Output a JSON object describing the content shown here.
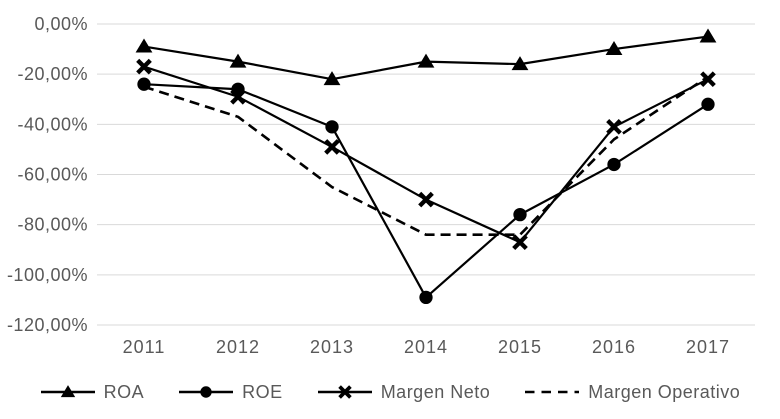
{
  "chart_data": {
    "type": "line",
    "title": "",
    "xlabel": "",
    "ylabel": "",
    "categories": [
      "2011",
      "2012",
      "2013",
      "2014",
      "2015",
      "2016",
      "2017"
    ],
    "series": [
      {
        "name": "ROA",
        "marker": "triangle",
        "line": "solid",
        "values": [
          -9,
          -15,
          -22,
          -15,
          -16,
          -10,
          -5
        ]
      },
      {
        "name": "ROE",
        "marker": "circle",
        "line": "solid",
        "values": [
          -24,
          -26,
          -41,
          -109,
          -76,
          -56,
          -32
        ]
      },
      {
        "name": "Margen Neto",
        "marker": "x",
        "line": "solid",
        "values": [
          -17,
          -29,
          -49,
          -70,
          -87,
          -41,
          -22
        ]
      },
      {
        "name": "Margen Operativo",
        "marker": "none",
        "line": "dashed",
        "values": [
          -25,
          -37,
          -65,
          -84,
          -84,
          -46,
          -21
        ]
      }
    ],
    "ylim": [
      -120,
      0
    ],
    "y_ticks": [
      {
        "value": 0,
        "label": "0,00%"
      },
      {
        "value": -20,
        "label": "-20,00%"
      },
      {
        "value": -40,
        "label": "-40,00%"
      },
      {
        "value": -60,
        "label": "-60,00%"
      },
      {
        "value": -80,
        "label": "-80,00%"
      },
      {
        "value": -100,
        "label": "-100,00%"
      },
      {
        "value": -120,
        "label": "-120,00%"
      }
    ],
    "grid": "horizontal",
    "legend_position": "bottom",
    "colors": {
      "series": "#000000",
      "grid": "#d9d9d9",
      "axis_text": "#595959",
      "background": "#ffffff"
    }
  }
}
